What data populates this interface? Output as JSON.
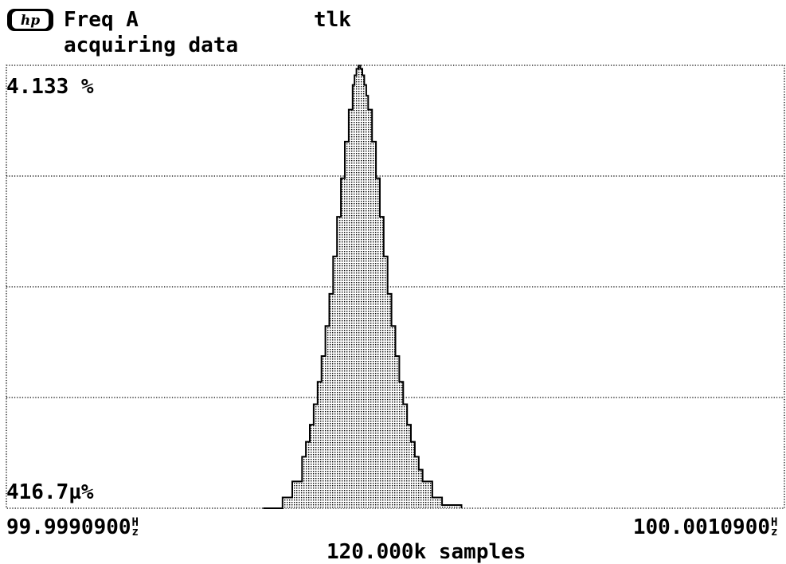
{
  "header": {
    "logo_text": "hp",
    "measurement": "Freq A",
    "status": "acquiring data",
    "bus_status": "tlk"
  },
  "chart_data": {
    "type": "area",
    "title": "Freq A",
    "ylabel_max": "4.133 %",
    "ylabel_min": "416.7µ%",
    "xlabel_min": "99.9990900",
    "xlabel_max": "100.0010900",
    "x_unit_top": "H",
    "x_unit_bottom": "z",
    "footer": "120.000k samples",
    "xlim": [
      99.99909,
      100.00109
    ],
    "ylim": [
      0,
      4.133
    ],
    "grid": true,
    "x": [
      99.99975,
      99.9998,
      99.999825,
      99.99985,
      99.99986,
      99.99987,
      99.99988,
      99.99989,
      99.9999,
      99.99991,
      99.99992,
      99.99993,
      99.99994,
      99.99995,
      99.99996,
      99.99997,
      99.99998,
      99.999985,
      99.99999,
      99.999995,
      100.0,
      100.000005,
      100.00001,
      100.000015,
      100.00002,
      100.00003,
      100.00004,
      100.00005,
      100.00006,
      100.00007,
      100.00008,
      100.00009,
      100.0001,
      100.00011,
      100.00012,
      100.00013,
      100.00014,
      100.00015,
      100.00016,
      100.000185,
      100.00021,
      100.00026
    ],
    "values": [
      0,
      0.1,
      0.25,
      0.48,
      0.62,
      0.78,
      0.97,
      1.18,
      1.42,
      1.7,
      2.0,
      2.35,
      2.72,
      3.08,
      3.42,
      3.72,
      3.95,
      4.04,
      4.1,
      4.13,
      4.1,
      4.04,
      3.95,
      3.85,
      3.72,
      3.42,
      3.08,
      2.72,
      2.35,
      2.0,
      1.7,
      1.42,
      1.18,
      0.97,
      0.78,
      0.62,
      0.48,
      0.36,
      0.25,
      0.1,
      0.03,
      0
    ]
  },
  "colors": {
    "ink": "#000000",
    "background": "#ffffff",
    "fill_dot": "#000000"
  }
}
